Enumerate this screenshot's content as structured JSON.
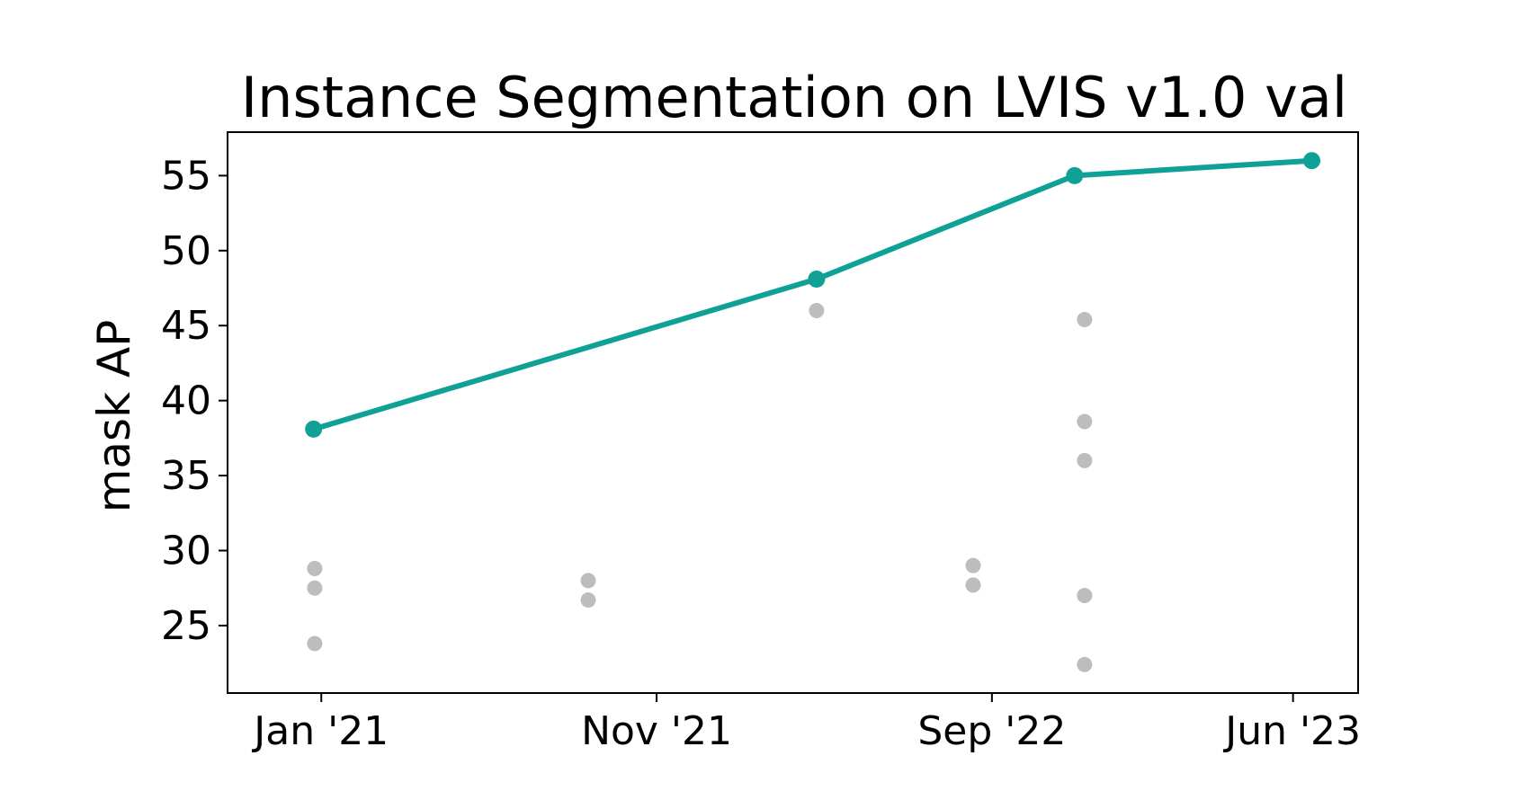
{
  "chart_data": {
    "type": "line",
    "title": "Instance Segmentation on LVIS v1.0 val",
    "xlabel": "",
    "ylabel": "mask AP",
    "x_axis_type": "date",
    "xlim": [
      "2020-10-08",
      "2023-07-30"
    ],
    "ylim": [
      20.5,
      57.9
    ],
    "x_ticks": [
      {
        "date": "2021-01-01",
        "label": "Jan '21"
      },
      {
        "date": "2021-11-01",
        "label": "Nov '21"
      },
      {
        "date": "2022-09-01",
        "label": "Sep '22"
      },
      {
        "date": "2023-06-01",
        "label": "Jun '23"
      }
    ],
    "y_ticks": [
      25,
      30,
      35,
      40,
      45,
      50,
      55
    ],
    "grid": false,
    "legend": "none",
    "series": [
      {
        "role": "state-of-the-art",
        "color": "#0fa196",
        "points": [
          {
            "x": "2020-12-25",
            "y": 38.1
          },
          {
            "x": "2022-03-26",
            "y": 48.1
          },
          {
            "x": "2022-11-15",
            "y": 55.0
          },
          {
            "x": "2023-06-18",
            "y": 56.0
          }
        ]
      },
      {
        "role": "other-models",
        "color": "#bdbdbd",
        "points": [
          {
            "x": "2020-12-26",
            "y": 28.8
          },
          {
            "x": "2020-12-26",
            "y": 27.5
          },
          {
            "x": "2020-12-26",
            "y": 23.8
          },
          {
            "x": "2021-08-31",
            "y": 28.0
          },
          {
            "x": "2021-08-31",
            "y": 26.7
          },
          {
            "x": "2022-03-26",
            "y": 46.0
          },
          {
            "x": "2022-08-15",
            "y": 29.0
          },
          {
            "x": "2022-08-15",
            "y": 27.7
          },
          {
            "x": "2022-11-24",
            "y": 45.4
          },
          {
            "x": "2022-11-24",
            "y": 38.6
          },
          {
            "x": "2022-11-24",
            "y": 36.0
          },
          {
            "x": "2022-11-24",
            "y": 27.0
          },
          {
            "x": "2022-11-24",
            "y": 22.4
          }
        ]
      }
    ]
  }
}
